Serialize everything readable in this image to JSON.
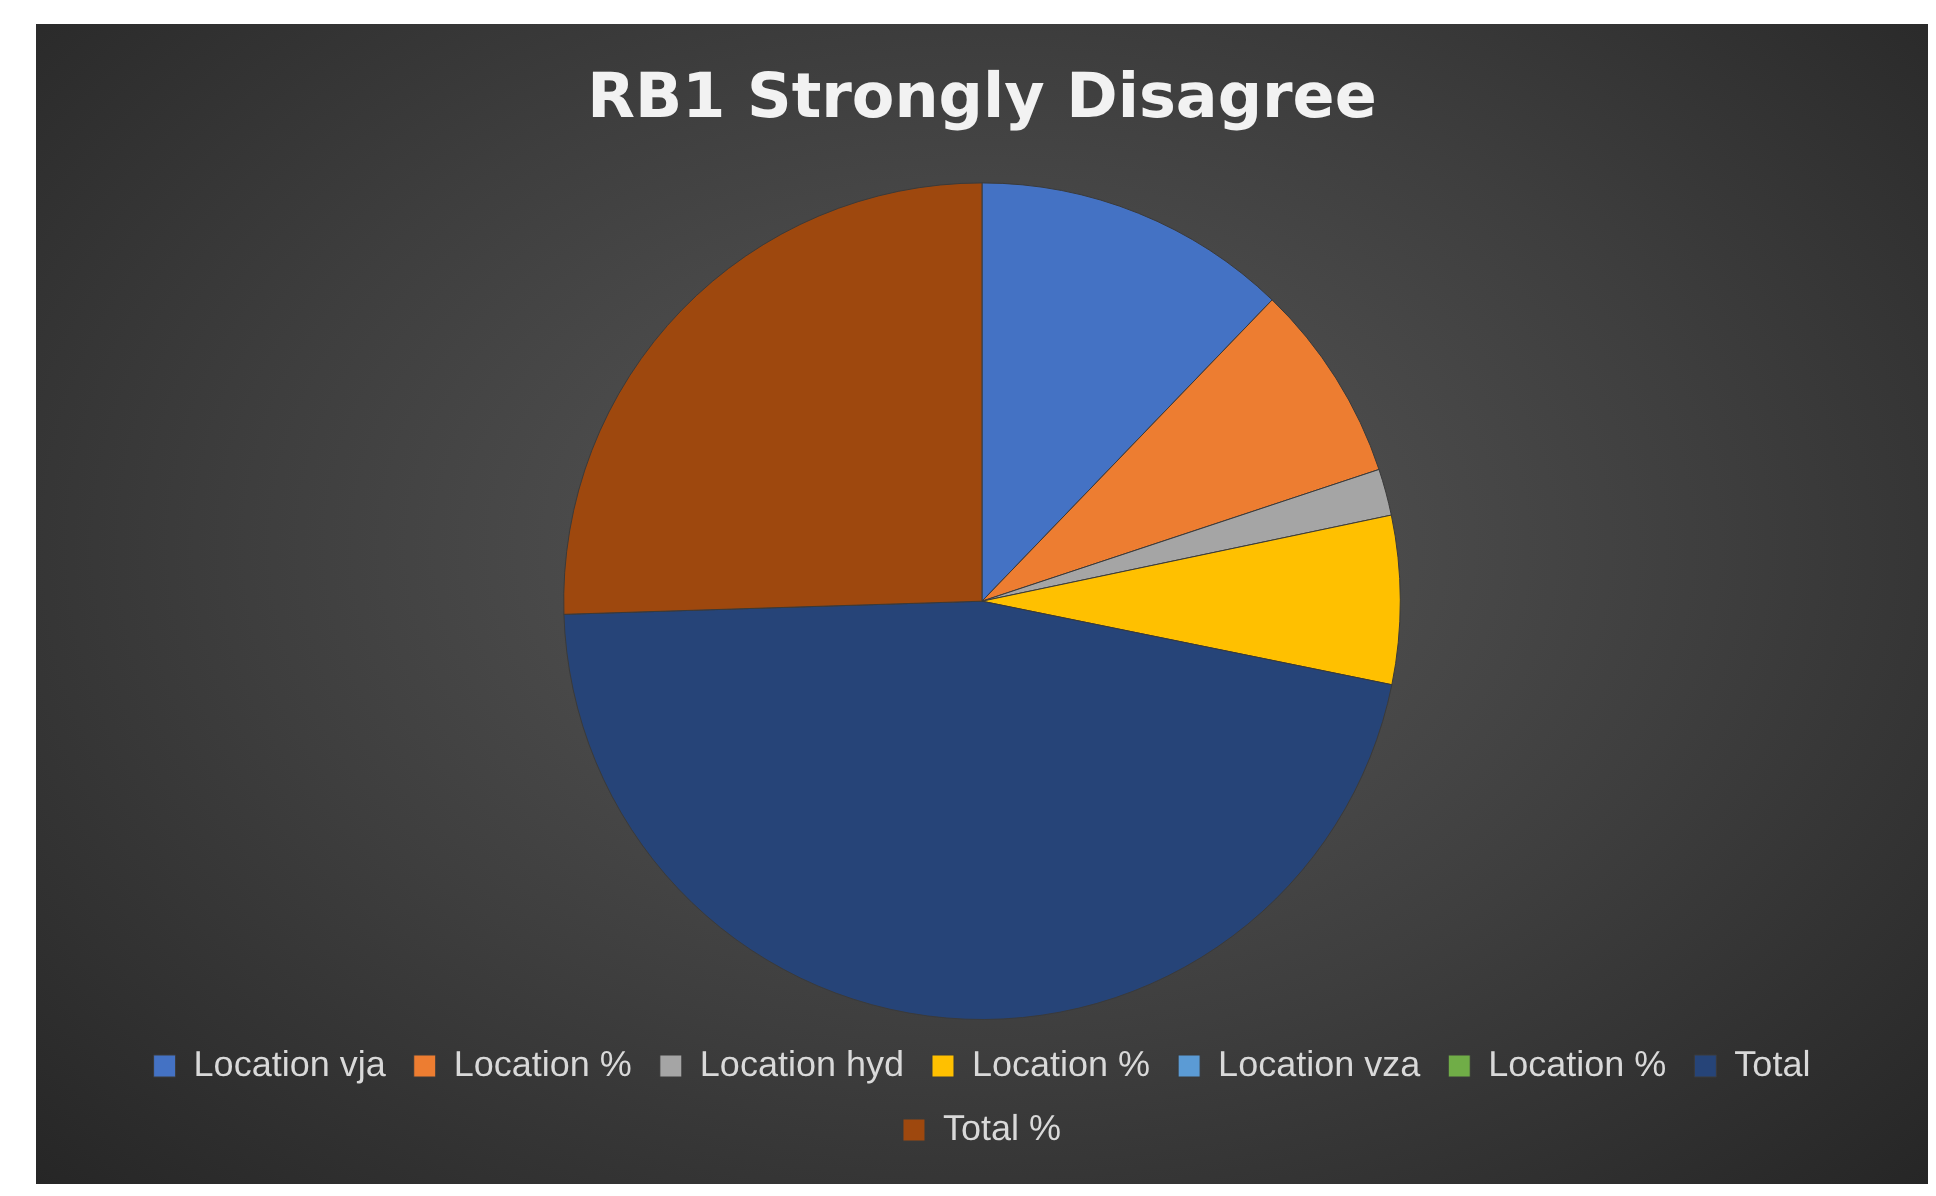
{
  "chart_data": {
    "type": "pie",
    "title": "RB1 Strongly Disagree",
    "categories": [
      "Location vja",
      "Location %",
      "Location hyd",
      "Location %",
      "Location vza",
      "Location %",
      "Total",
      "Total %"
    ],
    "values": [
      12.2,
      7.7,
      1.8,
      6.5,
      0,
      0,
      46.3,
      25.5
    ],
    "colors": [
      "#4472c4",
      "#ed7d31",
      "#a5a5a5",
      "#ffc000",
      "#5b9bd5",
      "#70ad47",
      "#264478",
      "#9e480e"
    ],
    "legend": "bottom"
  }
}
